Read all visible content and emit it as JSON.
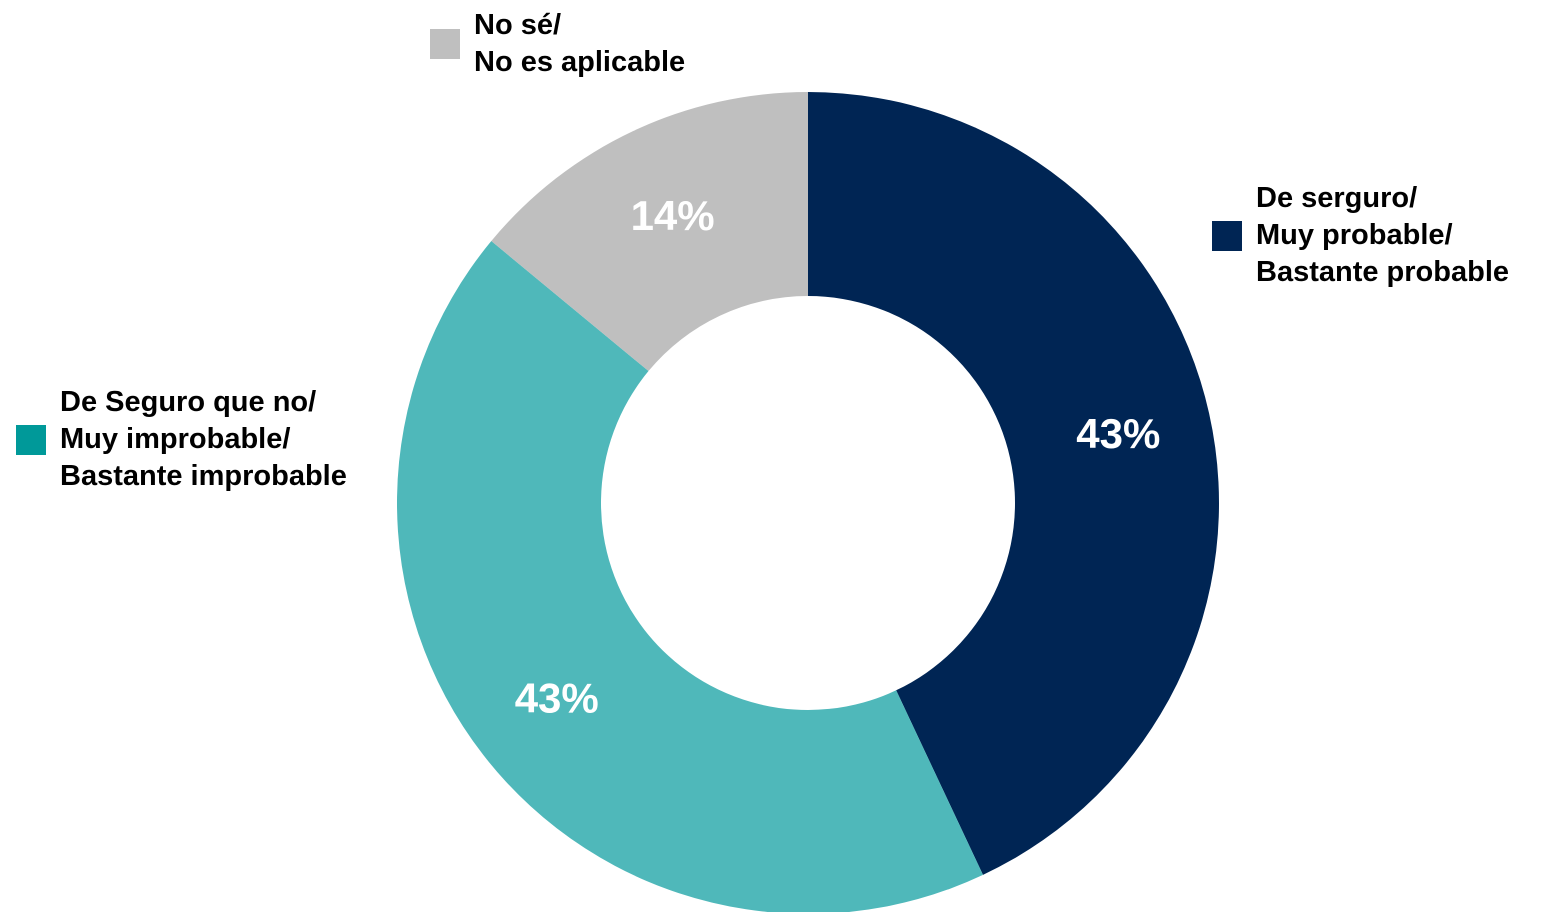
{
  "chart_data": {
    "type": "pie",
    "donut": true,
    "title": "",
    "slices": [
      {
        "key": "favorable",
        "label_lines": [
          "De serguro/",
          "Muy probable/",
          "Bastante probable"
        ],
        "value": 43,
        "value_label": "43%",
        "color": "#002554"
      },
      {
        "key": "unfavorable",
        "label_lines": [
          "De Seguro que no/",
          "Muy improbable/",
          "Bastante improbable"
        ],
        "value": 43,
        "value_label": "43%",
        "color": "#4FB8BA"
      },
      {
        "key": "unknown",
        "label_lines": [
          "No sé/",
          "No es aplicable"
        ],
        "value": 14,
        "value_label": "14%",
        "color": "#BFBFBF"
      }
    ],
    "legend": {
      "favorable_swatch": "#002554",
      "unfavorable_swatch": "#009999",
      "unknown_swatch": "#BFBFBF"
    },
    "value_label_color": "#FFFFFF",
    "start_angle": "12 o'clock",
    "direction": "clockwise"
  }
}
